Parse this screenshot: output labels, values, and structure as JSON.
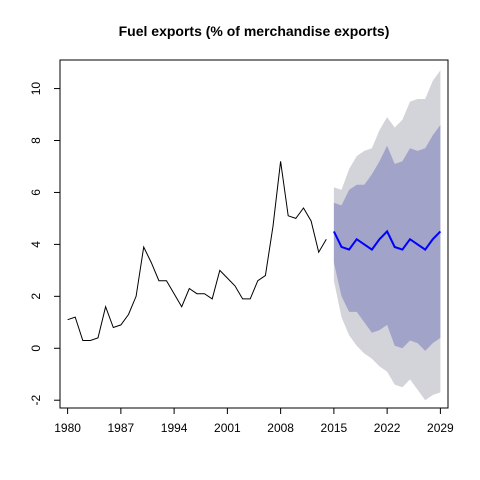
{
  "chart_data": {
    "type": "line",
    "title": "Fuel exports (% of merchandise exports)",
    "xlabel": "",
    "ylabel": "",
    "xlim": [
      1979,
      2030
    ],
    "ylim": [
      -2.3,
      11.1
    ],
    "x_ticks": [
      1980,
      1987,
      1994,
      2001,
      2008,
      2015,
      2022,
      2029
    ],
    "y_ticks": [
      -2,
      0,
      2,
      4,
      6,
      8,
      10
    ],
    "grid": false,
    "legend": "none",
    "colors": {
      "history": "#000000",
      "forecast": "#0000ff",
      "band95": "#d3d3da",
      "band80": "#a1a4c8"
    },
    "history": {
      "x": [
        1980,
        1981,
        1982,
        1983,
        1984,
        1985,
        1986,
        1987,
        1988,
        1989,
        1990,
        1991,
        1992,
        1993,
        1994,
        1995,
        1996,
        1997,
        1998,
        1999,
        2000,
        2001,
        2002,
        2003,
        2004,
        2005,
        2006,
        2007,
        2008,
        2009,
        2010,
        2011,
        2012,
        2013,
        2014
      ],
      "y": [
        1.1,
        1.2,
        0.3,
        0.3,
        0.4,
        1.6,
        0.8,
        0.9,
        1.3,
        2.0,
        3.9,
        3.3,
        2.6,
        2.6,
        2.1,
        1.6,
        2.3,
        2.1,
        2.1,
        1.9,
        3.0,
        2.7,
        2.4,
        1.9,
        1.9,
        2.6,
        2.8,
        4.7,
        7.2,
        5.1,
        5.0,
        5.4,
        4.9,
        3.7,
        4.2
      ]
    },
    "forecast": {
      "x": [
        2015,
        2016,
        2017,
        2018,
        2019,
        2020,
        2021,
        2022,
        2023,
        2024,
        2025,
        2026,
        2027,
        2028,
        2029
      ],
      "mean": [
        4.5,
        3.9,
        3.8,
        4.2,
        4.0,
        3.8,
        4.2,
        4.5,
        3.9,
        3.8,
        4.2,
        4.0,
        3.8,
        4.2,
        4.5
      ],
      "lo80": [
        3.3,
        2.0,
        1.4,
        1.4,
        1.0,
        0.6,
        0.7,
        0.9,
        0.1,
        0.0,
        0.3,
        0.2,
        -0.1,
        0.2,
        0.4
      ],
      "hi80": [
        5.6,
        5.5,
        6.1,
        6.3,
        6.3,
        6.7,
        7.2,
        7.8,
        7.1,
        7.2,
        7.7,
        7.6,
        7.7,
        8.2,
        8.6
      ],
      "lo95": [
        2.6,
        1.2,
        0.5,
        0.1,
        -0.2,
        -0.4,
        -0.7,
        -0.9,
        -1.4,
        -1.5,
        -1.2,
        -1.6,
        -2.0,
        -1.8,
        -1.7
      ],
      "hi95": [
        6.2,
        6.1,
        6.9,
        7.4,
        7.6,
        7.7,
        8.4,
        8.9,
        8.5,
        8.8,
        9.5,
        9.6,
        9.6,
        10.3,
        10.7
      ]
    }
  }
}
